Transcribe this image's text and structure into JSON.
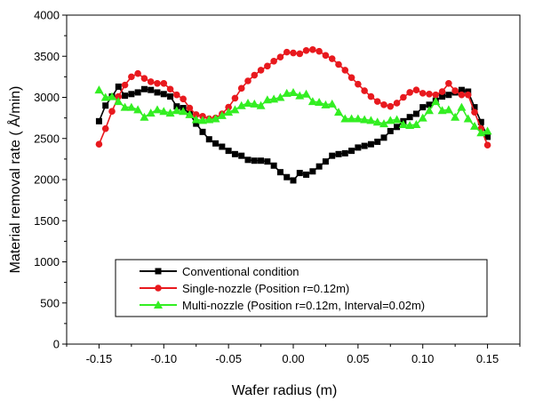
{
  "chart_data": {
    "type": "line",
    "xlabel": "Wafer radius (m)",
    "ylabel": "Material removal rate ( Å/min)",
    "xlim": [
      -0.175,
      0.175
    ],
    "ylim": [
      0,
      4000
    ],
    "x_ticks": [
      -0.15,
      -0.1,
      -0.05,
      0.0,
      0.05,
      0.1,
      0.15
    ],
    "x_tick_labels": [
      "-0.15",
      "-0.10",
      "-0.05",
      "0.00",
      "0.05",
      "0.10",
      "0.15"
    ],
    "y_ticks": [
      0,
      500,
      1000,
      1500,
      2000,
      2500,
      3000,
      3500,
      4000
    ],
    "y_tick_labels": [
      "0",
      "500",
      "1000",
      "1500",
      "2000",
      "2500",
      "3000",
      "3500",
      "4000"
    ],
    "grid": false,
    "legend_position": "bottom-center",
    "series": [
      {
        "name": "Conventional condition",
        "color": "#000000",
        "marker": "square",
        "points": [
          [
            -0.15,
            2710
          ],
          [
            -0.145,
            2900
          ],
          [
            -0.14,
            3010
          ],
          [
            -0.135,
            3130
          ],
          [
            -0.13,
            3020
          ],
          [
            -0.125,
            3040
          ],
          [
            -0.12,
            3060
          ],
          [
            -0.115,
            3100
          ],
          [
            -0.11,
            3090
          ],
          [
            -0.105,
            3060
          ],
          [
            -0.1,
            3040
          ],
          [
            -0.095,
            3010
          ],
          [
            -0.09,
            2890
          ],
          [
            -0.085,
            2870
          ],
          [
            -0.08,
            2800
          ],
          [
            -0.075,
            2680
          ],
          [
            -0.07,
            2580
          ],
          [
            -0.065,
            2490
          ],
          [
            -0.06,
            2440
          ],
          [
            -0.055,
            2400
          ],
          [
            -0.05,
            2350
          ],
          [
            -0.045,
            2310
          ],
          [
            -0.04,
            2290
          ],
          [
            -0.035,
            2240
          ],
          [
            -0.03,
            2230
          ],
          [
            -0.025,
            2230
          ],
          [
            -0.02,
            2220
          ],
          [
            -0.015,
            2170
          ],
          [
            -0.01,
            2090
          ],
          [
            -0.005,
            2030
          ],
          [
            0.0,
            1990
          ],
          [
            0.005,
            2080
          ],
          [
            0.01,
            2060
          ],
          [
            0.015,
            2100
          ],
          [
            0.02,
            2160
          ],
          [
            0.025,
            2220
          ],
          [
            0.03,
            2290
          ],
          [
            0.035,
            2310
          ],
          [
            0.04,
            2320
          ],
          [
            0.045,
            2350
          ],
          [
            0.05,
            2390
          ],
          [
            0.055,
            2410
          ],
          [
            0.06,
            2430
          ],
          [
            0.065,
            2460
          ],
          [
            0.07,
            2510
          ],
          [
            0.075,
            2590
          ],
          [
            0.08,
            2640
          ],
          [
            0.085,
            2710
          ],
          [
            0.09,
            2760
          ],
          [
            0.095,
            2800
          ],
          [
            0.1,
            2880
          ],
          [
            0.105,
            2910
          ],
          [
            0.11,
            2960
          ],
          [
            0.115,
            3010
          ],
          [
            0.12,
            3030
          ],
          [
            0.125,
            3060
          ],
          [
            0.13,
            3090
          ],
          [
            0.135,
            3070
          ],
          [
            0.14,
            2880
          ],
          [
            0.145,
            2700
          ],
          [
            0.15,
            2520
          ]
        ]
      },
      {
        "name": "Single-nozzle (Position r=0.12m)",
        "color": "#e8191e",
        "marker": "circle",
        "points": [
          [
            -0.15,
            2430
          ],
          [
            -0.145,
            2620
          ],
          [
            -0.14,
            2830
          ],
          [
            -0.135,
            3010
          ],
          [
            -0.13,
            3150
          ],
          [
            -0.125,
            3250
          ],
          [
            -0.12,
            3290
          ],
          [
            -0.115,
            3230
          ],
          [
            -0.11,
            3190
          ],
          [
            -0.105,
            3170
          ],
          [
            -0.1,
            3170
          ],
          [
            -0.095,
            3100
          ],
          [
            -0.09,
            3030
          ],
          [
            -0.085,
            2980
          ],
          [
            -0.08,
            2870
          ],
          [
            -0.075,
            2790
          ],
          [
            -0.07,
            2770
          ],
          [
            -0.065,
            2740
          ],
          [
            -0.06,
            2750
          ],
          [
            -0.055,
            2800
          ],
          [
            -0.05,
            2880
          ],
          [
            -0.045,
            2990
          ],
          [
            -0.04,
            3110
          ],
          [
            -0.035,
            3200
          ],
          [
            -0.03,
            3270
          ],
          [
            -0.025,
            3330
          ],
          [
            -0.02,
            3380
          ],
          [
            -0.015,
            3440
          ],
          [
            -0.01,
            3490
          ],
          [
            -0.005,
            3550
          ],
          [
            0.0,
            3540
          ],
          [
            0.005,
            3530
          ],
          [
            0.01,
            3570
          ],
          [
            0.015,
            3580
          ],
          [
            0.02,
            3560
          ],
          [
            0.025,
            3510
          ],
          [
            0.03,
            3470
          ],
          [
            0.035,
            3400
          ],
          [
            0.04,
            3330
          ],
          [
            0.045,
            3240
          ],
          [
            0.05,
            3160
          ],
          [
            0.055,
            3080
          ],
          [
            0.06,
            3010
          ],
          [
            0.065,
            2950
          ],
          [
            0.07,
            2910
          ],
          [
            0.075,
            2890
          ],
          [
            0.08,
            2930
          ],
          [
            0.085,
            3000
          ],
          [
            0.09,
            3060
          ],
          [
            0.095,
            3090
          ],
          [
            0.1,
            3050
          ],
          [
            0.105,
            3040
          ],
          [
            0.11,
            3030
          ],
          [
            0.115,
            3070
          ],
          [
            0.12,
            3170
          ],
          [
            0.125,
            3080
          ],
          [
            0.13,
            3030
          ],
          [
            0.135,
            3030
          ],
          [
            0.14,
            2820
          ],
          [
            0.145,
            2620
          ],
          [
            0.15,
            2420
          ]
        ]
      },
      {
        "name": "Multi-nozzle (Position r=0.12m, Interval=0.02m)",
        "color": "#33ee22",
        "marker": "triangle",
        "points": [
          [
            -0.15,
            3090
          ],
          [
            -0.145,
            3000
          ],
          [
            -0.14,
            3010
          ],
          [
            -0.135,
            2950
          ],
          [
            -0.13,
            2880
          ],
          [
            -0.125,
            2880
          ],
          [
            -0.12,
            2850
          ],
          [
            -0.115,
            2760
          ],
          [
            -0.11,
            2810
          ],
          [
            -0.105,
            2850
          ],
          [
            -0.1,
            2830
          ],
          [
            -0.095,
            2810
          ],
          [
            -0.09,
            2840
          ],
          [
            -0.085,
            2830
          ],
          [
            -0.08,
            2790
          ],
          [
            -0.075,
            2730
          ],
          [
            -0.07,
            2720
          ],
          [
            -0.065,
            2730
          ],
          [
            -0.06,
            2740
          ],
          [
            -0.055,
            2780
          ],
          [
            -0.05,
            2820
          ],
          [
            -0.045,
            2850
          ],
          [
            -0.04,
            2900
          ],
          [
            -0.035,
            2930
          ],
          [
            -0.03,
            2920
          ],
          [
            -0.025,
            2900
          ],
          [
            -0.02,
            2970
          ],
          [
            -0.015,
            2980
          ],
          [
            -0.01,
            3000
          ],
          [
            -0.005,
            3050
          ],
          [
            0.0,
            3060
          ],
          [
            0.005,
            3020
          ],
          [
            0.01,
            3040
          ],
          [
            0.015,
            2950
          ],
          [
            0.02,
            2940
          ],
          [
            0.025,
            2910
          ],
          [
            0.03,
            2920
          ],
          [
            0.035,
            2820
          ],
          [
            0.04,
            2740
          ],
          [
            0.045,
            2740
          ],
          [
            0.05,
            2740
          ],
          [
            0.055,
            2730
          ],
          [
            0.06,
            2720
          ],
          [
            0.065,
            2700
          ],
          [
            0.07,
            2680
          ],
          [
            0.075,
            2720
          ],
          [
            0.08,
            2730
          ],
          [
            0.085,
            2670
          ],
          [
            0.09,
            2660
          ],
          [
            0.095,
            2670
          ],
          [
            0.1,
            2750
          ],
          [
            0.105,
            2840
          ],
          [
            0.11,
            2950
          ],
          [
            0.115,
            2840
          ],
          [
            0.12,
            2850
          ],
          [
            0.125,
            2760
          ],
          [
            0.13,
            2880
          ],
          [
            0.135,
            2740
          ],
          [
            0.14,
            2650
          ],
          [
            0.145,
            2570
          ],
          [
            0.15,
            2590
          ]
        ]
      }
    ]
  }
}
